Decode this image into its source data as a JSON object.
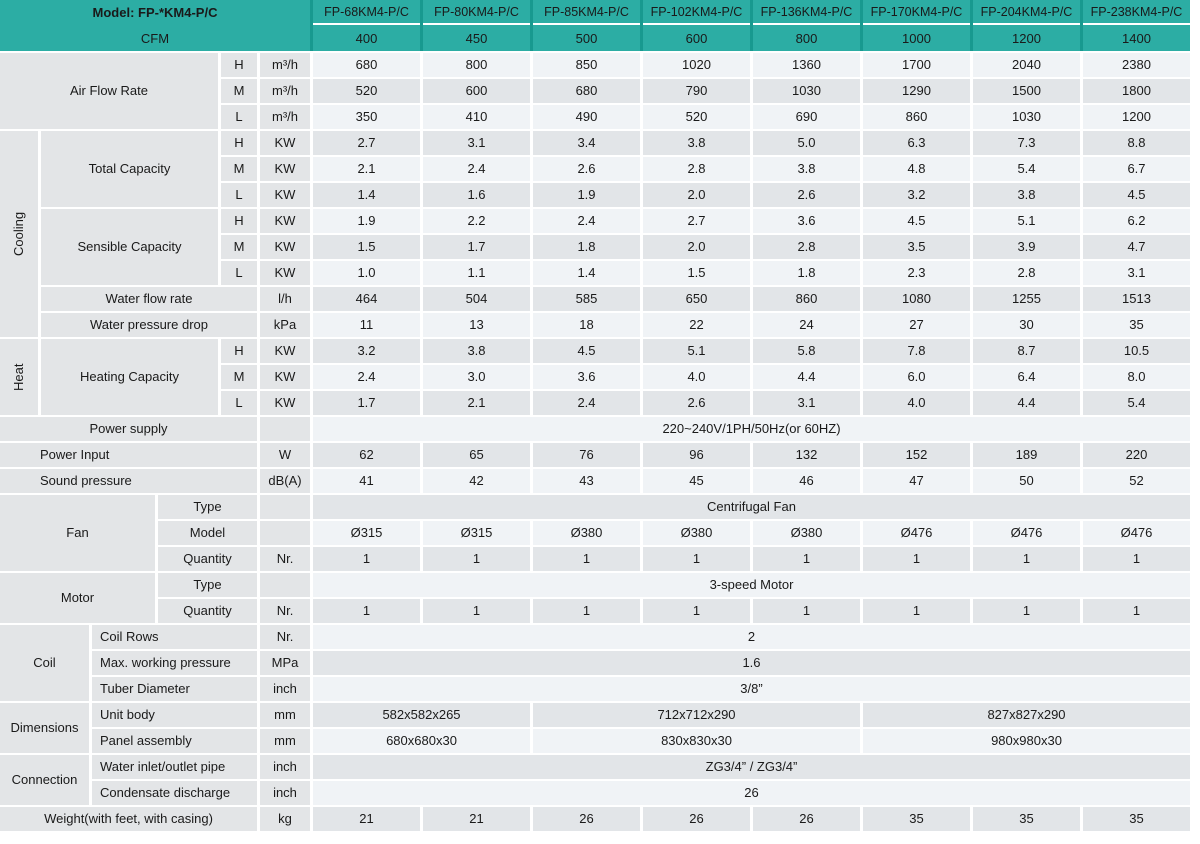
{
  "header": {
    "model_label": "Model: FP-*KM4-P/C",
    "cfm_label": "CFM",
    "models": [
      "FP-68KM4-P/C",
      "FP-80KM4-P/C",
      "FP-85KM4-P/C",
      "FP-102KM4-P/C",
      "FP-136KM4-P/C",
      "FP-170KM4-P/C",
      "FP-204KM4-P/C",
      "FP-238KM4-P/C"
    ],
    "cfms": [
      "400",
      "450",
      "500",
      "600",
      "800",
      "1000",
      "1200",
      "1400"
    ]
  },
  "speeds": [
    "H",
    "M",
    "L"
  ],
  "labels": {
    "air_flow_rate": "Air Flow Rate",
    "cooling": "Cooling",
    "total_capacity": "Total Capacity",
    "sensible_capacity": "Sensible Capacity",
    "water_flow_rate": "Water flow rate",
    "water_pressure_drop": "Water pressure drop",
    "heat": "Heat",
    "heating_capacity": "Heating Capacity",
    "power_supply": "Power supply",
    "power_input": "Power Input",
    "sound_pressure": "Sound pressure",
    "fan": "Fan",
    "type": "Type",
    "model": "Model",
    "quantity": "Quantity",
    "motor": "Motor",
    "coil": "Coil",
    "coil_rows": "Coil Rows",
    "max_working_pressure": "Max. working pressure",
    "tuber_diameter": "Tuber Diameter",
    "dimensions": "Dimensions",
    "unit_body": "Unit body",
    "panel_assembly": "Panel assembly",
    "connection": "Connection",
    "water_inlet_outlet": "Water inlet/outlet pipe",
    "condensate_discharge": "Condensate discharge",
    "weight": "Weight(with feet, with casing)"
  },
  "units": {
    "airflow": "m³/h",
    "capacity": "KW",
    "water_flow": "l/h",
    "water_pressure": "kPa",
    "power": "W",
    "sound": "dB(A)",
    "quantity": "Nr.",
    "coil_rows": "Nr.",
    "max_pressure": "MPa",
    "inch": "inch",
    "mm": "mm",
    "weight": "kg"
  },
  "values": {
    "airflow_h": [
      "680",
      "800",
      "850",
      "1020",
      "1360",
      "1700",
      "2040",
      "2380"
    ],
    "airflow_m": [
      "520",
      "600",
      "680",
      "790",
      "1030",
      "1290",
      "1500",
      "1800"
    ],
    "airflow_l": [
      "350",
      "410",
      "490",
      "520",
      "690",
      "860",
      "1030",
      "1200"
    ],
    "total_h": [
      "2.7",
      "3.1",
      "3.4",
      "3.8",
      "5.0",
      "6.3",
      "7.3",
      "8.8"
    ],
    "total_m": [
      "2.1",
      "2.4",
      "2.6",
      "2.8",
      "3.8",
      "4.8",
      "5.4",
      "6.7"
    ],
    "total_l": [
      "1.4",
      "1.6",
      "1.9",
      "2.0",
      "2.6",
      "3.2",
      "3.8",
      "4.5"
    ],
    "sensible_h": [
      "1.9",
      "2.2",
      "2.4",
      "2.7",
      "3.6",
      "4.5",
      "5.1",
      "6.2"
    ],
    "sensible_m": [
      "1.5",
      "1.7",
      "1.8",
      "2.0",
      "2.8",
      "3.5",
      "3.9",
      "4.7"
    ],
    "sensible_l": [
      "1.0",
      "1.1",
      "1.4",
      "1.5",
      "1.8",
      "2.3",
      "2.8",
      "3.1"
    ],
    "water_flow": [
      "464",
      "504",
      "585",
      "650",
      "860",
      "1080",
      "1255",
      "1513"
    ],
    "water_pressure": [
      "11",
      "13",
      "18",
      "22",
      "24",
      "27",
      "30",
      "35"
    ],
    "heating_h": [
      "3.2",
      "3.8",
      "4.5",
      "5.1",
      "5.8",
      "7.8",
      "8.7",
      "10.5"
    ],
    "heating_m": [
      "2.4",
      "3.0",
      "3.6",
      "4.0",
      "4.4",
      "6.0",
      "6.4",
      "8.0"
    ],
    "heating_l": [
      "1.7",
      "2.1",
      "2.4",
      "2.6",
      "3.1",
      "4.0",
      "4.4",
      "5.4"
    ],
    "power_supply": "220~240V/1PH/50Hz(or 60HZ)",
    "power_input": [
      "62",
      "65",
      "76",
      "96",
      "132",
      "152",
      "189",
      "220"
    ],
    "sound_pressure": [
      "41",
      "42",
      "43",
      "45",
      "46",
      "47",
      "50",
      "52"
    ],
    "fan_type": "Centrifugal Fan",
    "fan_model": [
      "Ø315",
      "Ø315",
      "Ø380",
      "Ø380",
      "Ø380",
      "Ø476",
      "Ø476",
      "Ø476"
    ],
    "fan_quantity": [
      "1",
      "1",
      "1",
      "1",
      "1",
      "1",
      "1",
      "1"
    ],
    "motor_type": "3-speed Motor",
    "motor_quantity": [
      "1",
      "1",
      "1",
      "1",
      "1",
      "1",
      "1",
      "1"
    ],
    "coil_rows": "2",
    "max_working_pressure": "1.6",
    "tuber_diameter": "3/8”",
    "unit_body": [
      "582x582x265",
      "712x712x290",
      "827x827x290"
    ],
    "panel_assembly": [
      "680x680x30",
      "830x830x30",
      "980x980x30"
    ],
    "water_inlet_outlet": "ZG3/4” / ZG3/4”",
    "condensate_discharge": "26",
    "weight": [
      "21",
      "21",
      "26",
      "26",
      "26",
      "35",
      "35",
      "35"
    ]
  },
  "colors": {
    "teal": "#2CADA4",
    "teal_dark": "#18998F",
    "row_light": "#F0F3F6",
    "row_gray": "#E2E5E8",
    "label_gray": "#E3E5E7"
  }
}
